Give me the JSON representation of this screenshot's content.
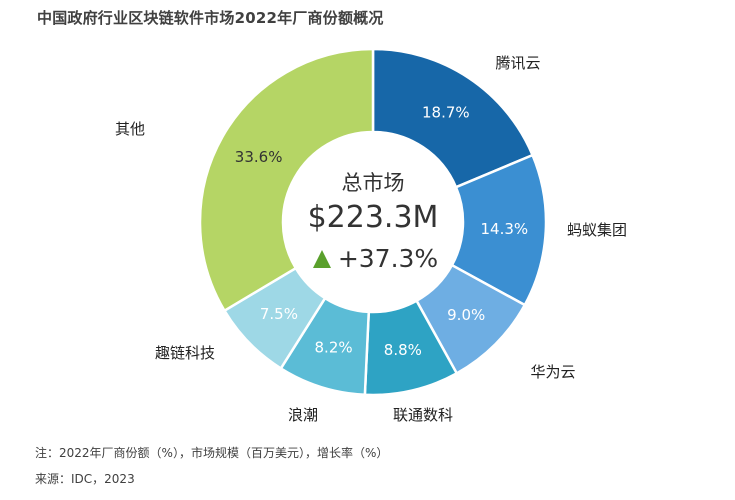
{
  "title": "中国政府行业区块链软件市场2022年厂商份额概况",
  "chart_data": {
    "type": "pie",
    "title": "中国政府行业区块链软件市场2022年厂商份额概况",
    "categories": [
      "腾讯云",
      "蚂蚁集团",
      "华为云",
      "联通数科",
      "浪潮",
      "趣链科技",
      "其他"
    ],
    "values": [
      18.7,
      14.3,
      9.0,
      8.8,
      8.2,
      7.5,
      33.6
    ],
    "value_labels": [
      "18.7%",
      "14.3%",
      "9.0%",
      "8.8%",
      "8.2%",
      "7.5%",
      "33.6%"
    ],
    "colors": [
      "#1767a8",
      "#3b8fd2",
      "#6eaee3",
      "#2ea3c4",
      "#5bbcd6",
      "#9ed8e6",
      "#b5d565"
    ],
    "center": {
      "label": "总市场",
      "total": "$223.3M",
      "growth": "+37.3%",
      "growth_icon": "up-triangle-icon",
      "growth_color": "#5aa02c"
    }
  },
  "footnote": {
    "note": "注：2022年厂商份额（%），市场规模（百万美元），增长率（%）",
    "source": "来源：IDC，2023"
  }
}
